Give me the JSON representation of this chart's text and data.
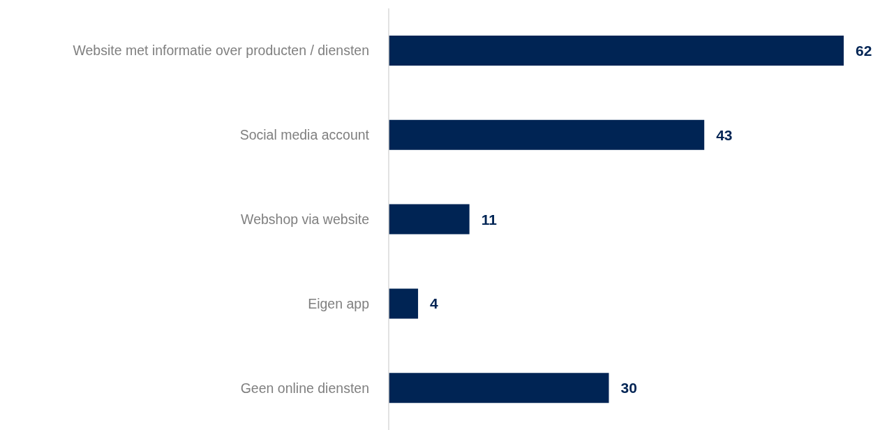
{
  "chart_data": {
    "type": "bar",
    "orientation": "horizontal",
    "data_labels": true,
    "categories": [
      "Website met informatie over producten / diensten",
      "Social media account",
      "Webshop via website",
      "Eigen app",
      "Geen online diensten"
    ],
    "values": [
      62,
      43,
      11,
      4,
      30
    ],
    "color": "#002454"
  }
}
